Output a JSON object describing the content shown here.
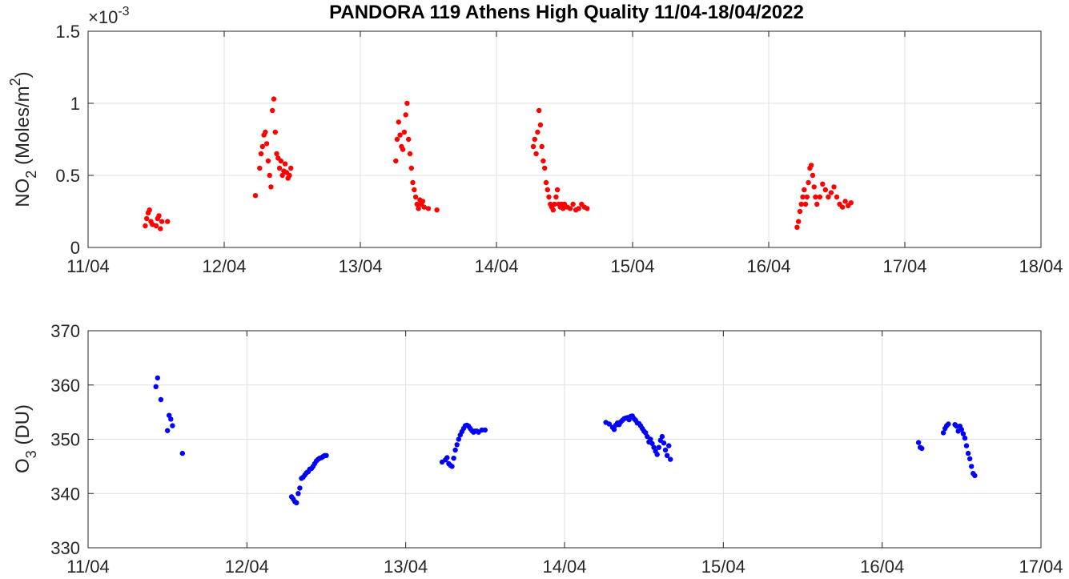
{
  "title": "PANDORA 119 Athens High Quality 11/04-18/04/2022",
  "chart_data": [
    {
      "type": "scatter",
      "ylabel_main": "NO",
      "ylabel_sub": "2",
      "ylabel_unit_prefix": " (Moles/m",
      "ylabel_unit_sup": "2",
      "ylabel_unit_suffix": ")",
      "exponent_base": "×10",
      "exponent_power": "-3",
      "xlim": [
        "2022-04-11",
        "2022-04-18"
      ],
      "ylim": [
        0,
        1.5
      ],
      "xticks": [
        "11/04",
        "12/04",
        "13/04",
        "14/04",
        "15/04",
        "16/04",
        "17/04",
        "18/04"
      ],
      "yticks": [
        "0",
        "0.5",
        "1",
        "1.5"
      ],
      "grid": true,
      "marker_color": "#ff0000",
      "x": [
        "2022-04-11 10:05",
        "2022-04-11 10:20",
        "2022-04-11 10:35",
        "2022-04-11 10:50",
        "2022-04-11 11:05",
        "2022-04-11 11:20",
        "2022-04-11 12:00",
        "2022-04-11 12:15",
        "2022-04-11 12:30",
        "2022-04-11 12:45",
        "2022-04-11 13:00",
        "2022-04-11 14:00",
        "2022-04-12 05:30",
        "2022-04-12 06:15",
        "2022-04-12 06:30",
        "2022-04-12 06:45",
        "2022-04-12 07:00",
        "2022-04-12 07:15",
        "2022-04-12 07:30",
        "2022-04-12 07:45",
        "2022-04-12 08:00",
        "2022-04-12 08:15",
        "2022-04-12 08:30",
        "2022-04-12 08:45",
        "2022-04-12 09:00",
        "2022-04-12 09:15",
        "2022-04-12 09:30",
        "2022-04-12 09:45",
        "2022-04-12 10:00",
        "2022-04-12 10:15",
        "2022-04-12 10:30",
        "2022-04-12 10:45",
        "2022-04-12 11:00",
        "2022-04-12 11:15",
        "2022-04-12 11:30",
        "2022-04-12 11:45",
        "2022-04-13 06:15",
        "2022-04-13 06:30",
        "2022-04-13 06:45",
        "2022-04-13 07:00",
        "2022-04-13 07:15",
        "2022-04-13 07:30",
        "2022-04-13 07:45",
        "2022-04-13 08:00",
        "2022-04-13 08:15",
        "2022-04-13 08:30",
        "2022-04-13 08:45",
        "2022-04-13 09:00",
        "2022-04-13 09:15",
        "2022-04-13 09:30",
        "2022-04-13 09:45",
        "2022-04-13 10:00",
        "2022-04-13 10:15",
        "2022-04-13 10:30",
        "2022-04-13 10:45",
        "2022-04-13 11:00",
        "2022-04-13 11:15",
        "2022-04-13 12:00",
        "2022-04-13 13:30",
        "2022-04-14 06:30",
        "2022-04-14 06:45",
        "2022-04-14 07:00",
        "2022-04-14 07:15",
        "2022-04-14 07:30",
        "2022-04-14 07:45",
        "2022-04-14 08:00",
        "2022-04-14 08:15",
        "2022-04-14 08:30",
        "2022-04-14 08:45",
        "2022-04-14 09:00",
        "2022-04-14 09:15",
        "2022-04-14 09:30",
        "2022-04-14 09:45",
        "2022-04-14 10:00",
        "2022-04-14 10:15",
        "2022-04-14 10:30",
        "2022-04-14 10:45",
        "2022-04-14 11:00",
        "2022-04-14 11:15",
        "2022-04-14 11:30",
        "2022-04-14 11:45",
        "2022-04-14 12:00",
        "2022-04-14 12:30",
        "2022-04-14 13:00",
        "2022-04-14 13:30",
        "2022-04-14 14:00",
        "2022-04-14 14:30",
        "2022-04-14 15:00",
        "2022-04-14 15:30",
        "2022-04-14 16:00",
        "2022-04-16 05:00",
        "2022-04-16 05:15",
        "2022-04-16 05:30",
        "2022-04-16 05:45",
        "2022-04-16 06:00",
        "2022-04-16 06:15",
        "2022-04-16 06:30",
        "2022-04-16 06:45",
        "2022-04-16 07:00",
        "2022-04-16 07:15",
        "2022-04-16 07:30",
        "2022-04-16 07:45",
        "2022-04-16 08:00",
        "2022-04-16 08:15",
        "2022-04-16 08:30",
        "2022-04-16 09:00",
        "2022-04-16 09:30",
        "2022-04-16 10:00",
        "2022-04-16 10:30",
        "2022-04-16 11:00",
        "2022-04-16 11:30",
        "2022-04-16 12:00",
        "2022-04-16 12:30",
        "2022-04-16 13:00",
        "2022-04-16 13:30",
        "2022-04-16 14:00",
        "2022-04-16 14:30"
      ],
      "y": [
        0.15,
        0.2,
        0.24,
        0.26,
        0.18,
        0.16,
        0.15,
        0.2,
        0.22,
        0.13,
        0.18,
        0.18,
        0.36,
        0.55,
        0.65,
        0.7,
        0.78,
        0.8,
        0.72,
        0.6,
        0.5,
        0.42,
        0.95,
        1.03,
        0.8,
        0.65,
        0.62,
        0.55,
        0.6,
        0.5,
        0.53,
        0.58,
        0.52,
        0.48,
        0.5,
        0.55,
        0.6,
        0.75,
        0.87,
        0.78,
        0.7,
        0.68,
        0.8,
        0.92,
        1.0,
        0.75,
        0.65,
        0.55,
        0.45,
        0.4,
        0.35,
        0.3,
        0.27,
        0.33,
        0.3,
        0.32,
        0.28,
        0.27,
        0.26,
        0.7,
        0.75,
        0.65,
        0.8,
        0.95,
        0.85,
        0.7,
        0.6,
        0.55,
        0.45,
        0.4,
        0.35,
        0.3,
        0.28,
        0.26,
        0.3,
        0.35,
        0.4,
        0.3,
        0.28,
        0.3,
        0.27,
        0.3,
        0.28,
        0.27,
        0.3,
        0.26,
        0.27,
        0.3,
        0.28,
        0.27,
        0.14,
        0.18,
        0.25,
        0.3,
        0.35,
        0.4,
        0.3,
        0.35,
        0.45,
        0.55,
        0.57,
        0.5,
        0.42,
        0.35,
        0.3,
        0.35,
        0.44,
        0.4,
        0.35,
        0.38,
        0.42,
        0.35,
        0.3,
        0.28,
        0.32,
        0.29,
        0.31
      ]
    },
    {
      "type": "scatter",
      "ylabel_main": "O",
      "ylabel_sub": "3",
      "ylabel_unit_prefix": " (DU)",
      "xlim": [
        "2022-04-11",
        "2022-04-17"
      ],
      "ylim": [
        330,
        370
      ],
      "xticks": [
        "11/04",
        "12/04",
        "13/04",
        "14/04",
        "15/04",
        "16/04",
        "17/04"
      ],
      "yticks": [
        "330",
        "340",
        "350",
        "360",
        "370"
      ],
      "grid": true,
      "marker_color": "#0000ff",
      "x": [
        "2022-04-11 10:15",
        "2022-04-11 10:30",
        "2022-04-11 11:00",
        "2022-04-11 12:00",
        "2022-04-11 12:15",
        "2022-04-11 12:30",
        "2022-04-11 12:45",
        "2022-04-11 14:15",
        "2022-04-12 06:45",
        "2022-04-12 07:00",
        "2022-04-12 07:15",
        "2022-04-12 07:30",
        "2022-04-12 07:45",
        "2022-04-12 08:00",
        "2022-04-12 08:15",
        "2022-04-12 08:30",
        "2022-04-12 08:45",
        "2022-04-12 09:00",
        "2022-04-12 09:15",
        "2022-04-12 09:30",
        "2022-04-12 09:45",
        "2022-04-12 10:00",
        "2022-04-12 10:15",
        "2022-04-12 10:30",
        "2022-04-12 10:45",
        "2022-04-12 11:00",
        "2022-04-12 11:15",
        "2022-04-12 11:30",
        "2022-04-12 11:45",
        "2022-04-12 12:00",
        "2022-04-13 05:30",
        "2022-04-13 06:00",
        "2022-04-13 06:15",
        "2022-04-13 06:30",
        "2022-04-13 06:45",
        "2022-04-13 07:00",
        "2022-04-13 07:15",
        "2022-04-13 07:30",
        "2022-04-13 07:45",
        "2022-04-13 08:00",
        "2022-04-13 08:15",
        "2022-04-13 08:30",
        "2022-04-13 08:45",
        "2022-04-13 09:00",
        "2022-04-13 09:15",
        "2022-04-13 09:30",
        "2022-04-13 09:45",
        "2022-04-13 10:00",
        "2022-04-13 10:15",
        "2022-04-13 10:30",
        "2022-04-13 10:45",
        "2022-04-13 11:00",
        "2022-04-13 11:30",
        "2022-04-13 12:00",
        "2022-04-14 06:15",
        "2022-04-14 06:45",
        "2022-04-14 07:15",
        "2022-04-14 07:30",
        "2022-04-14 07:45",
        "2022-04-14 08:00",
        "2022-04-14 08:15",
        "2022-04-14 08:30",
        "2022-04-14 08:45",
        "2022-04-14 09:00",
        "2022-04-14 09:15",
        "2022-04-14 09:30",
        "2022-04-14 09:45",
        "2022-04-14 10:00",
        "2022-04-14 10:15",
        "2022-04-14 10:30",
        "2022-04-14 10:45",
        "2022-04-14 11:00",
        "2022-04-14 11:15",
        "2022-04-14 11:30",
        "2022-04-14 11:45",
        "2022-04-14 12:00",
        "2022-04-14 12:15",
        "2022-04-14 12:30",
        "2022-04-14 12:45",
        "2022-04-14 13:00",
        "2022-04-14 13:15",
        "2022-04-14 13:30",
        "2022-04-14 13:45",
        "2022-04-14 14:00",
        "2022-04-14 14:15",
        "2022-04-14 14:30",
        "2022-04-14 14:45",
        "2022-04-14 15:00",
        "2022-04-14 15:15",
        "2022-04-14 15:30",
        "2022-04-14 15:45",
        "2022-04-14 16:00",
        "2022-04-16 05:30",
        "2022-04-16 05:45",
        "2022-04-16 06:00",
        "2022-04-16 09:15",
        "2022-04-16 09:30",
        "2022-04-16 09:45",
        "2022-04-16 10:00",
        "2022-04-16 11:00",
        "2022-04-16 11:15",
        "2022-04-16 11:30",
        "2022-04-16 11:45",
        "2022-04-16 12:00",
        "2022-04-16 12:15",
        "2022-04-16 12:30",
        "2022-04-16 12:45",
        "2022-04-16 13:00",
        "2022-04-16 13:15",
        "2022-04-16 13:30",
        "2022-04-16 13:45",
        "2022-04-16 14:00"
      ],
      "y": [
        359.7,
        361.3,
        357.3,
        351.6,
        354.4,
        353.7,
        352.5,
        347.4,
        339.4,
        339,
        338.5,
        338.3,
        340,
        341,
        342.8,
        343,
        343.4,
        343.8,
        344,
        344.5,
        344.6,
        345,
        345.5,
        346,
        346.3,
        346.5,
        346.6,
        346.8,
        347,
        347,
        345.8,
        346.2,
        346.6,
        345.5,
        345.2,
        345,
        346.5,
        348,
        349,
        350,
        350.8,
        351.4,
        352,
        352.5,
        352.6,
        352.4,
        352,
        351.6,
        351.3,
        351.5,
        351.5,
        351.3,
        351.7,
        351.7,
        353.1,
        352.8,
        352.2,
        351.8,
        352.6,
        353,
        352.7,
        353.2,
        353.5,
        353.8,
        353.9,
        354,
        353.6,
        354.2,
        354.3,
        353.8,
        353.5,
        353,
        352.9,
        352.5,
        352,
        351.5,
        351.2,
        350.5,
        349.5,
        350,
        349.2,
        348.5,
        347.8,
        347.2,
        348.5,
        349.8,
        350.5,
        349.3,
        348,
        347,
        348.8,
        346.3,
        349.4,
        348.5,
        348.3,
        351.2,
        352,
        352.5,
        352.8,
        352.7,
        352.4,
        351.5,
        352.4,
        351.8,
        351,
        350.2,
        348.8,
        347.4,
        346.4,
        345,
        343.7,
        343.3
      ]
    }
  ]
}
